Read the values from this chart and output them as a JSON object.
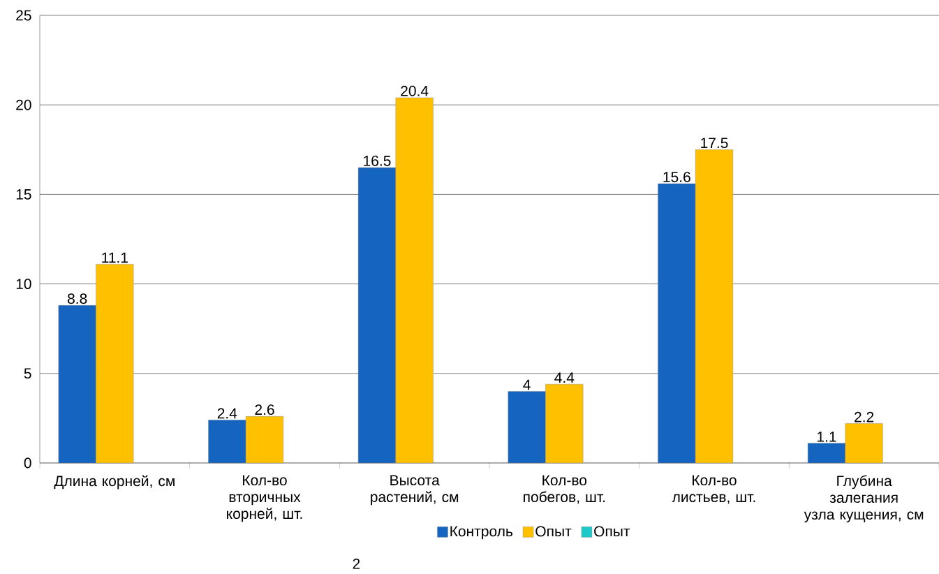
{
  "chart_data": {
    "type": "bar",
    "categories": [
      "Длина корней, см",
      "Кол-во вторичных корней, шт.",
      "Высота растений, см",
      "Кол-во побегов, шт.",
      "Кол-во листьев, шт.",
      "Глубина залегания узла кущения, см"
    ],
    "series": [
      {
        "name": "Контроль",
        "color": "#1565c0",
        "values": [
          8.8,
          2.4,
          16.5,
          4,
          15.6,
          1.1
        ]
      },
      {
        "name": "Опыт",
        "color": "#ffc000",
        "values": [
          11.1,
          2.6,
          20.4,
          4.4,
          17.5,
          2.2
        ]
      },
      {
        "name": "Опыт",
        "color": "#1ec8c8",
        "values": [
          null,
          null,
          null,
          null,
          null,
          null
        ]
      }
    ],
    "ylim": [
      0,
      25
    ],
    "yticks": [
      0,
      5,
      10,
      15,
      20,
      25
    ],
    "grid": "y",
    "legend": "bottom",
    "data_labels": true,
    "annotations": [
      "2"
    ]
  }
}
